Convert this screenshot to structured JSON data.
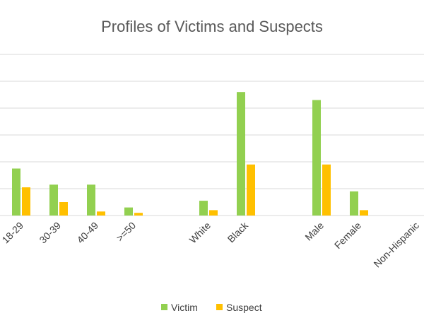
{
  "chart_data": {
    "type": "bar",
    "title": "Profiles of Victims and Suspects",
    "xlabel": "",
    "ylabel": "",
    "categories": [
      "18-29",
      "30-39",
      "40-49",
      ">=50",
      "White",
      "Black",
      "Male",
      "Female",
      "Non-Hispanic"
    ],
    "series": [
      {
        "name": "Victim",
        "values": [
          35,
          23,
          23,
          6,
          11,
          92,
          86,
          18,
          null
        ]
      },
      {
        "name": "Suspect",
        "values": [
          21,
          10,
          3,
          2,
          4,
          38,
          38,
          4,
          null
        ]
      }
    ],
    "ylim": [
      0,
      120
    ],
    "grid": true,
    "legend": "bottom",
    "colors": {
      "Victim": "#92d050",
      "Suspect": "#ffc000",
      "grid": "#d9d9d9"
    }
  }
}
